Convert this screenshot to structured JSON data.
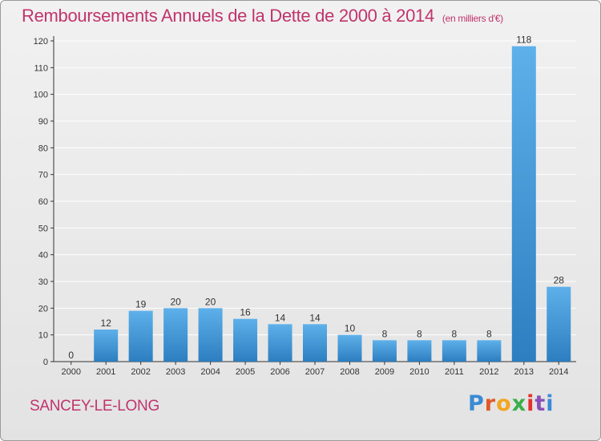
{
  "title": "Remboursements Annuels de la Dette de 2000 à 2014",
  "subtitle": "(en milliers d'€)",
  "commune": "SANCEY-LE-LONG",
  "logo": {
    "text": "Proxiti",
    "colors": [
      "#3a8ad4",
      "#e05a2a",
      "#f2a622",
      "#3cae4a",
      "#e2312e",
      "#8a50b8",
      "#3a8ad4"
    ]
  },
  "colors": {
    "title": "#c0346c",
    "bar_top": "#5eb0ea",
    "bar_bottom": "#2c7ec0",
    "axis": "#333333",
    "grid": "#ffffff"
  },
  "chart_data": {
    "type": "bar",
    "categories": [
      "2000",
      "2001",
      "2002",
      "2003",
      "2004",
      "2005",
      "2006",
      "2007",
      "2008",
      "2009",
      "2010",
      "2011",
      "2012",
      "2013",
      "2014"
    ],
    "values": [
      0,
      12,
      19,
      20,
      20,
      16,
      14,
      14,
      10,
      8,
      8,
      8,
      8,
      118,
      28
    ],
    "ylim": [
      0,
      120
    ],
    "yticks": [
      0,
      10,
      20,
      30,
      40,
      50,
      60,
      70,
      80,
      90,
      100,
      110,
      120
    ],
    "xlabel": "",
    "ylabel": "",
    "grid": true
  }
}
